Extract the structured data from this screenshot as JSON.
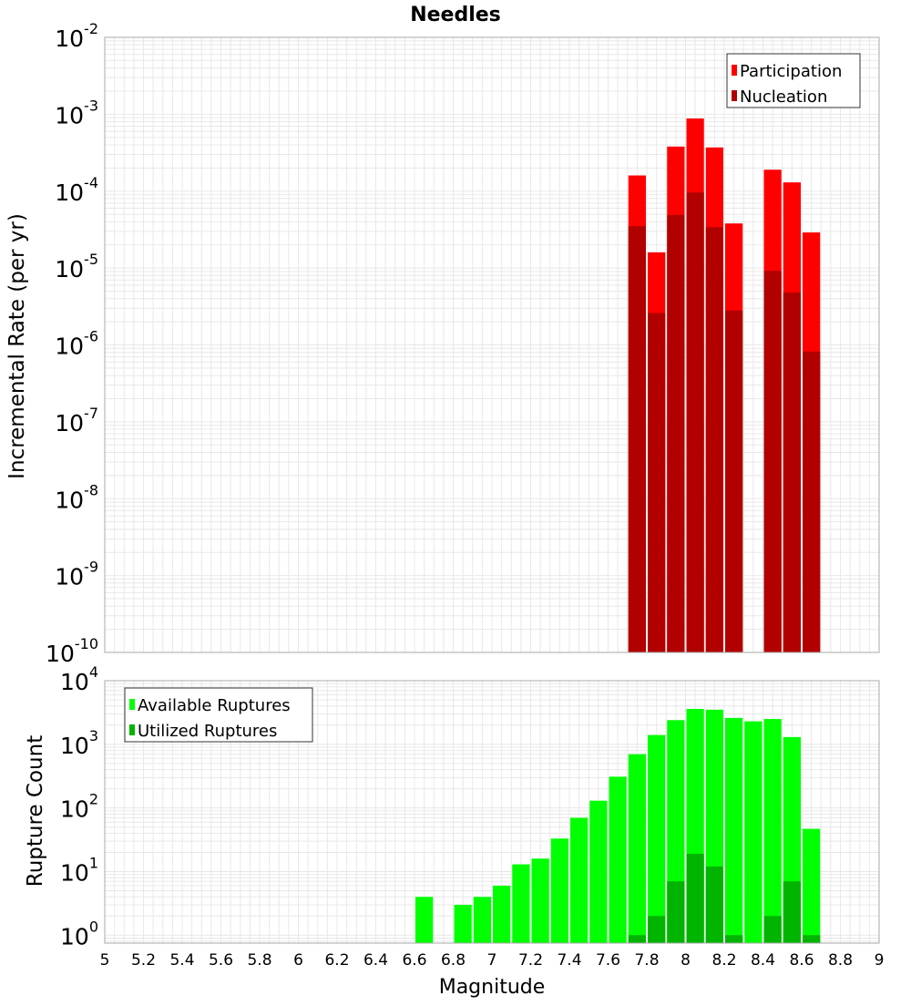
{
  "title": "Needles",
  "x_axis": {
    "label": "Magnitude",
    "range": [
      5,
      9
    ],
    "ticks": [
      "5",
      "5.2",
      "5.4",
      "5.6",
      "5.8",
      "6",
      "6.2",
      "6.4",
      "6.6",
      "6.8",
      "7",
      "7.2",
      "7.4",
      "7.6",
      "7.8",
      "8",
      "8.2",
      "8.4",
      "8.6",
      "8.8",
      "9"
    ]
  },
  "colors": {
    "participation": "#ff0000",
    "nucleation": "#b20000",
    "available": "#00ff00",
    "utilized": "#00b400",
    "grid": "#e8e8e8",
    "frame": "#aaaaaa"
  },
  "chart_data": [
    {
      "type": "bar",
      "name": "rate-panel",
      "title": "Needles",
      "xlabel": "Magnitude",
      "ylabel": "Incremental Rate (per yr)",
      "yscale": "log",
      "xlim": [
        5,
        9
      ],
      "ylim": [
        1e-10,
        0.01
      ],
      "y_tick_exponents": [
        "-10",
        "-9",
        "-8",
        "-7",
        "-6",
        "-5",
        "-4",
        "-3",
        "-2"
      ],
      "legend_position": "top-right",
      "x": [
        7.75,
        7.85,
        7.95,
        8.05,
        8.15,
        8.25,
        8.45,
        8.55,
        8.65
      ],
      "series": [
        {
          "name": "Participation",
          "color_key": "participation",
          "values": [
            0.00016,
            1.6e-05,
            0.00038,
            0.00088,
            0.00037,
            3.8e-05,
            0.00019,
            0.00013,
            2.9e-05
          ]
        },
        {
          "name": "Nucleation",
          "color_key": "nucleation",
          "values": [
            3.5e-05,
            2.6e-06,
            4.9e-05,
            9.6e-05,
            3.4e-05,
            2.8e-06,
            9.2e-06,
            4.8e-06,
            8.2e-07
          ]
        }
      ]
    },
    {
      "type": "bar",
      "name": "count-panel",
      "xlabel": "Magnitude",
      "ylabel": "Rupture Count",
      "yscale": "log",
      "xlim": [
        5,
        9
      ],
      "ylim": [
        0.75,
        10000
      ],
      "y_tick_exponents": [
        "0",
        "1",
        "2",
        "3",
        "4"
      ],
      "legend_position": "top-left",
      "series": [
        {
          "name": "Available Ruptures",
          "color_key": "available",
          "x": [
            6.65,
            6.85,
            6.95,
            7.05,
            7.15,
            7.25,
            7.35,
            7.45,
            7.55,
            7.65,
            7.75,
            7.85,
            7.95,
            8.05,
            8.15,
            8.25,
            8.35,
            8.45,
            8.55,
            8.65
          ],
          "values": [
            4,
            3,
            4,
            6,
            13,
            16,
            33,
            70,
            130,
            310,
            700,
            1400,
            2400,
            3600,
            3500,
            2600,
            2300,
            2500,
            1300,
            47
          ]
        },
        {
          "name": "Utilized Ruptures",
          "color_key": "utilized",
          "x": [
            7.75,
            7.85,
            7.95,
            8.05,
            8.15,
            8.25,
            8.45,
            8.55,
            8.65
          ],
          "values": [
            1,
            2,
            7,
            19,
            12,
            1,
            2,
            7,
            1
          ]
        }
      ]
    }
  ]
}
